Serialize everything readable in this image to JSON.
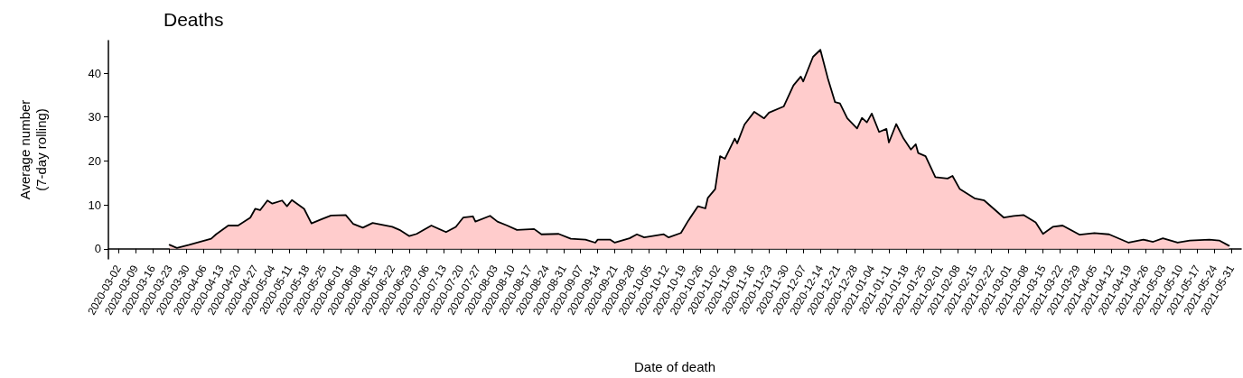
{
  "chart_data": {
    "type": "area",
    "title": "Deaths",
    "xlabel": "Date of death",
    "ylabel": "Average number\n(7-day rolling)",
    "x": [
      "2020-03-23",
      "2020-03-26",
      "2020-03-31",
      "2020-04-09",
      "2020-04-11",
      "2020-04-16",
      "2020-04-20",
      "2020-04-25",
      "2020-04-27",
      "2020-04-29",
      "2020-05-02",
      "2020-05-04",
      "2020-05-08",
      "2020-05-10",
      "2020-05-12",
      "2020-05-17",
      "2020-05-20",
      "2020-05-24",
      "2020-05-28",
      "2020-06-03",
      "2020-06-06",
      "2020-06-10",
      "2020-06-14",
      "2020-06-22",
      "2020-06-25",
      "2020-06-29",
      "2020-07-02",
      "2020-07-08",
      "2020-07-14",
      "2020-07-18",
      "2020-07-21",
      "2020-07-25",
      "2020-07-26",
      "2020-08-01",
      "2020-08-04",
      "2020-08-08",
      "2020-08-12",
      "2020-08-19",
      "2020-08-22",
      "2020-08-29",
      "2020-09-03",
      "2020-09-09",
      "2020-09-13",
      "2020-09-14",
      "2020-09-19",
      "2020-09-21",
      "2020-09-27",
      "2020-09-30",
      "2020-10-03",
      "2020-10-11",
      "2020-10-13",
      "2020-10-18",
      "2020-10-21",
      "2020-10-25",
      "2020-10-28",
      "2020-10-29",
      "2020-11-01",
      "2020-11-03",
      "2020-11-05",
      "2020-11-09",
      "2020-11-10",
      "2020-11-13",
      "2020-11-17",
      "2020-11-21",
      "2020-11-23",
      "2020-11-29",
      "2020-12-03",
      "2020-12-06",
      "2020-12-07",
      "2020-12-11",
      "2020-12-14",
      "2020-12-17",
      "2020-12-20",
      "2020-12-22",
      "2020-12-25",
      "2020-12-29",
      "2020-12-31",
      "2021-01-02",
      "2021-01-04",
      "2021-01-07",
      "2021-01-10",
      "2021-01-11",
      "2021-01-14",
      "2021-01-17",
      "2021-01-20",
      "2021-01-22",
      "2021-01-23",
      "2021-01-26",
      "2021-01-30",
      "2021-02-04",
      "2021-02-06",
      "2021-02-09",
      "2021-02-15",
      "2021-02-19",
      "2021-02-27",
      "2021-03-03",
      "2021-03-07",
      "2021-03-12",
      "2021-03-15",
      "2021-03-19",
      "2021-03-23",
      "2021-03-30",
      "2021-04-05",
      "2021-04-11",
      "2021-04-19",
      "2021-04-25",
      "2021-04-29",
      "2021-05-03",
      "2021-05-09",
      "2021-05-14",
      "2021-05-22",
      "2021-05-26",
      "2021-05-30"
    ],
    "series": [
      {
        "color": "#ffcccc",
        "values": [
          0.9,
          0.2,
          0.9,
          2.3,
          3.3,
          5.3,
          5.3,
          7.1,
          9.1,
          8.8,
          11.0,
          10.3,
          11.0,
          9.7,
          11.1,
          9.1,
          5.8,
          6.7,
          7.6,
          7.7,
          5.7,
          4.8,
          5.9,
          5.0,
          4.3,
          2.9,
          3.4,
          5.3,
          3.8,
          5.0,
          7.1,
          7.4,
          6.2,
          7.5,
          6.2,
          5.3,
          4.3,
          4.5,
          3.3,
          3.4,
          2.3,
          2.1,
          1.4,
          2.1,
          2.1,
          1.4,
          2.4,
          3.3,
          2.6,
          3.3,
          2.6,
          3.6,
          6.4,
          9.7,
          9.2,
          11.6,
          13.6,
          21.1,
          20.5,
          25.1,
          24.0,
          28.3,
          31.2,
          29.7,
          31.0,
          32.4,
          37.2,
          39.2,
          38.1,
          43.7,
          45.3,
          38.9,
          33.4,
          33.1,
          29.7,
          27.4,
          29.8,
          28.8,
          30.8,
          26.6,
          27.3,
          24.2,
          28.4,
          25.1,
          22.6,
          23.8,
          21.8,
          21.1,
          16.3,
          16.0,
          16.6,
          13.6,
          11.5,
          11.0,
          7.1,
          7.5,
          7.7,
          6.0,
          3.4,
          5.0,
          5.3,
          3.2,
          3.6,
          3.3,
          1.4,
          2.1,
          1.6,
          2.4,
          1.4,
          1.9,
          2.1,
          1.9,
          0.7
        ]
      }
    ],
    "xlim": [
      "2020-02-27",
      "2021-06-04"
    ],
    "xticks": [
      "2020-03-02",
      "2020-03-09",
      "2020-03-16",
      "2020-03-23",
      "2020-03-30",
      "2020-04-06",
      "2020-04-13",
      "2020-04-20",
      "2020-04-27",
      "2020-05-04",
      "2020-05-11",
      "2020-05-18",
      "2020-05-25",
      "2020-06-01",
      "2020-06-08",
      "2020-06-15",
      "2020-06-22",
      "2020-06-29",
      "2020-07-06",
      "2020-07-13",
      "2020-07-20",
      "2020-07-27",
      "2020-08-03",
      "2020-08-10",
      "2020-08-17",
      "2020-08-24",
      "2020-08-31",
      "2020-09-07",
      "2020-09-14",
      "2020-09-21",
      "2020-09-28",
      "2020-10-05",
      "2020-10-12",
      "2020-10-19",
      "2020-10-26",
      "2020-11-02",
      "2020-11-09",
      "2020-11-16",
      "2020-11-23",
      "2020-11-30",
      "2020-12-07",
      "2020-12-14",
      "2020-12-21",
      "2020-12-28",
      "2021-01-04",
      "2021-01-11",
      "2021-01-18",
      "2021-01-25",
      "2021-02-01",
      "2021-02-08",
      "2021-02-15",
      "2021-02-22",
      "2021-03-01",
      "2021-03-08",
      "2021-03-15",
      "2021-03-22",
      "2021-03-29",
      "2021-04-05",
      "2021-04-12",
      "2021-04-19",
      "2021-04-26",
      "2021-05-03",
      "2021-05-10",
      "2021-05-17",
      "2021-05-24",
      "2021-05-31"
    ],
    "ylim": [
      -2.3,
      47.4
    ],
    "yticks": [
      0,
      10,
      20,
      30,
      40
    ],
    "grid": false,
    "marker": "none",
    "line_style": "solid"
  }
}
